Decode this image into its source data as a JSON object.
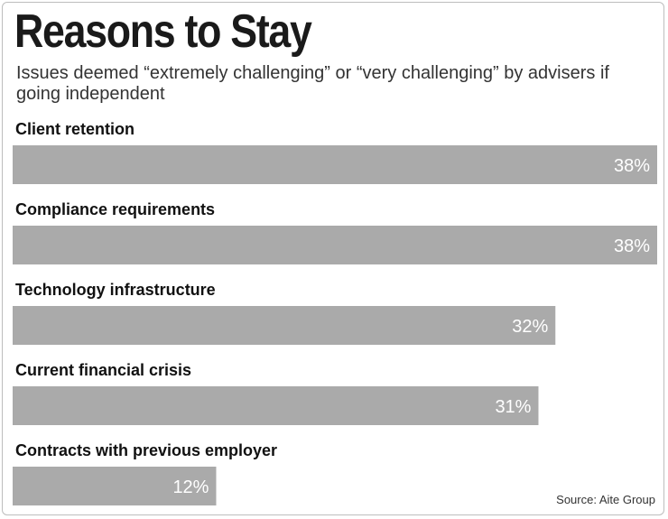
{
  "chart_data": {
    "type": "bar",
    "orientation": "horizontal",
    "title": "Reasons to Stay",
    "subtitle": "Issues deemed “extremely challenging” or “very challenging” by advisers if going independent",
    "categories": [
      "Client retention",
      "Compliance requirements",
      "Technology infrastructure",
      "Current financial crisis",
      "Contracts with previous employer"
    ],
    "values": [
      38,
      38,
      32,
      31,
      12
    ],
    "value_labels": [
      "38%",
      "38%",
      "32%",
      "31%",
      "12%"
    ],
    "unit": "%",
    "xlim": [
      0,
      38
    ],
    "grid": false,
    "bar_color": "#aaaaaa",
    "source": "Source: Aite Group"
  }
}
